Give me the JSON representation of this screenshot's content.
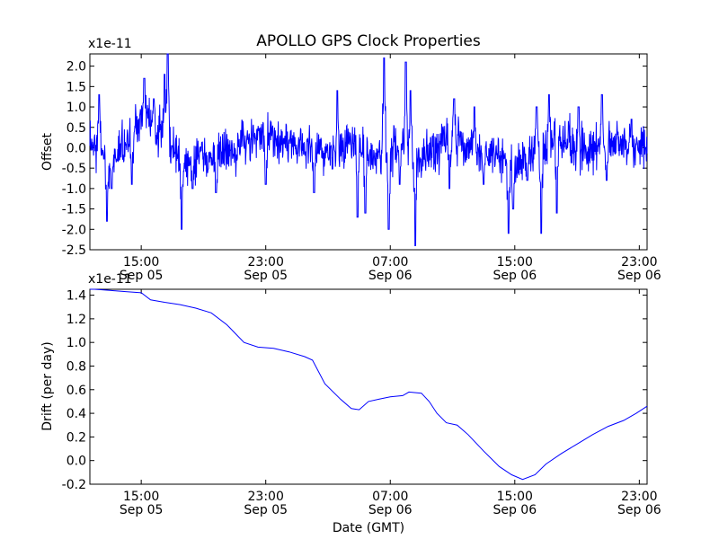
{
  "figure": {
    "title": "APOLLO GPS Clock Properties",
    "xlabel": "Date (GMT)"
  },
  "colors": {
    "line": "#0000ff",
    "frame": "#000000",
    "background": "#ffffff"
  },
  "chart_data": [
    {
      "type": "line",
      "ylabel": "Offset",
      "scale_label": "x1e-11",
      "ylim": [
        -2.5,
        2.3
      ],
      "yticks": [
        -2.5,
        -2.0,
        -1.5,
        -1.0,
        -0.5,
        0.0,
        0.5,
        1.0,
        1.5,
        2.0
      ],
      "ytick_labels": [
        "-2.5",
        "-2.0",
        "-1.5",
        "-1.0",
        "-0.5",
        "0.0",
        "0.5",
        "1.0",
        "1.5",
        "2.0"
      ],
      "xlim_hours": [
        11.7,
        47.5
      ],
      "xticks_hours": [
        15,
        23,
        31,
        39,
        47
      ],
      "xtick_labels": [
        {
          "time": "15:00",
          "date": "Sep 05"
        },
        {
          "time": "23:00",
          "date": "Sep 05"
        },
        {
          "time": "07:00",
          "date": "Sep 06"
        },
        {
          "time": "15:00",
          "date": "Sep 06"
        },
        {
          "time": "23:00",
          "date": "Sep 06"
        }
      ],
      "series": [
        {
          "name": "offset",
          "note": "dense noisy series around 0; values in units of 1e-11",
          "envelope": [
            [
              11.7,
              0.3
            ],
            [
              13.0,
              -0.3
            ],
            [
              14.3,
              0.2
            ],
            [
              15.2,
              0.9
            ],
            [
              16.0,
              0.4
            ],
            [
              17.0,
              0.1
            ],
            [
              18.0,
              -0.5
            ],
            [
              19.5,
              -0.2
            ],
            [
              21.0,
              0.0
            ],
            [
              22.5,
              0.3
            ],
            [
              24.0,
              0.2
            ],
            [
              25.5,
              0.0
            ],
            [
              27.0,
              -0.2
            ],
            [
              28.5,
              0.2
            ],
            [
              30.0,
              -0.3
            ],
            [
              31.5,
              0.1
            ],
            [
              33.0,
              -0.3
            ],
            [
              34.5,
              0.3
            ],
            [
              36.0,
              0.0
            ],
            [
              37.5,
              -0.2
            ],
            [
              39.0,
              -0.4
            ],
            [
              40.5,
              0.0
            ],
            [
              42.0,
              0.2
            ],
            [
              43.5,
              -0.1
            ],
            [
              45.0,
              0.1
            ],
            [
              46.5,
              0.0
            ],
            [
              47.5,
              0.0
            ]
          ],
          "spikes": [
            [
              12.3,
              1.3
            ],
            [
              12.8,
              -1.8
            ],
            [
              13.1,
              -1.0
            ],
            [
              14.4,
              -0.9
            ],
            [
              15.2,
              1.7
            ],
            [
              15.8,
              1.2
            ],
            [
              16.5,
              1.8
            ],
            [
              16.7,
              2.3
            ],
            [
              17.6,
              -2.0
            ],
            [
              18.3,
              -1.0
            ],
            [
              19.8,
              -1.1
            ],
            [
              23.0,
              -0.9
            ],
            [
              26.1,
              -1.1
            ],
            [
              27.6,
              1.4
            ],
            [
              28.9,
              -1.7
            ],
            [
              29.4,
              -1.6
            ],
            [
              30.6,
              2.2
            ],
            [
              30.9,
              -2.0
            ],
            [
              31.6,
              -0.9
            ],
            [
              32.0,
              2.1
            ],
            [
              32.3,
              1.4
            ],
            [
              32.6,
              -2.4
            ],
            [
              34.8,
              -1.0
            ],
            [
              35.1,
              1.2
            ],
            [
              36.4,
              1.0
            ],
            [
              37.0,
              -0.9
            ],
            [
              38.6,
              -2.1
            ],
            [
              38.9,
              -1.5
            ],
            [
              39.8,
              -0.8
            ],
            [
              40.4,
              1.0
            ],
            [
              40.7,
              -2.1
            ],
            [
              41.2,
              1.3
            ],
            [
              41.7,
              -1.6
            ],
            [
              43.1,
              1.0
            ],
            [
              44.6,
              1.3
            ],
            [
              44.9,
              -0.8
            ],
            [
              46.5,
              0.7
            ]
          ]
        }
      ]
    },
    {
      "type": "line",
      "ylabel": "Drift (per day)",
      "scale_label": "x1e-11",
      "ylim": [
        -0.2,
        1.45
      ],
      "yticks": [
        -0.2,
        0.0,
        0.2,
        0.4,
        0.6,
        0.8,
        1.0,
        1.2,
        1.4
      ],
      "ytick_labels": [
        "-0.2",
        "0.0",
        "0.2",
        "0.4",
        "0.6",
        "0.8",
        "1.0",
        "1.2",
        "1.4"
      ],
      "xlim_hours": [
        11.7,
        47.5
      ],
      "xticks_hours": [
        15,
        23,
        31,
        39,
        47
      ],
      "xtick_labels": [
        {
          "time": "15:00",
          "date": "Sep 05"
        },
        {
          "time": "23:00",
          "date": "Sep 05"
        },
        {
          "time": "07:00",
          "date": "Sep 06"
        },
        {
          "time": "15:00",
          "date": "Sep 06"
        },
        {
          "time": "23:00",
          "date": "Sep 06"
        }
      ],
      "series": [
        {
          "name": "drift",
          "points": [
            [
              11.7,
              1.47
            ],
            [
              12.0,
              1.45
            ],
            [
              13.0,
              1.44
            ],
            [
              14.0,
              1.43
            ],
            [
              15.0,
              1.42
            ],
            [
              15.6,
              1.36
            ],
            [
              16.5,
              1.34
            ],
            [
              17.5,
              1.32
            ],
            [
              18.5,
              1.29
            ],
            [
              19.5,
              1.25
            ],
            [
              20.5,
              1.15
            ],
            [
              21.6,
              1.0
            ],
            [
              22.5,
              0.96
            ],
            [
              23.5,
              0.95
            ],
            [
              24.5,
              0.92
            ],
            [
              25.5,
              0.88
            ],
            [
              26.0,
              0.85
            ],
            [
              26.8,
              0.65
            ],
            [
              27.8,
              0.52
            ],
            [
              28.5,
              0.44
            ],
            [
              29.0,
              0.43
            ],
            [
              29.6,
              0.5
            ],
            [
              30.3,
              0.52
            ],
            [
              31.0,
              0.54
            ],
            [
              31.8,
              0.55
            ],
            [
              32.2,
              0.58
            ],
            [
              33.0,
              0.57
            ],
            [
              33.5,
              0.5
            ],
            [
              34.0,
              0.4
            ],
            [
              34.6,
              0.32
            ],
            [
              35.3,
              0.3
            ],
            [
              36.0,
              0.22
            ],
            [
              37.0,
              0.08
            ],
            [
              38.0,
              -0.05
            ],
            [
              38.8,
              -0.12
            ],
            [
              39.5,
              -0.16
            ],
            [
              40.3,
              -0.12
            ],
            [
              41.0,
              -0.03
            ],
            [
              42.0,
              0.06
            ],
            [
              43.0,
              0.14
            ],
            [
              44.0,
              0.22
            ],
            [
              45.0,
              0.29
            ],
            [
              46.0,
              0.34
            ],
            [
              46.8,
              0.4
            ],
            [
              47.5,
              0.46
            ]
          ]
        }
      ]
    }
  ]
}
